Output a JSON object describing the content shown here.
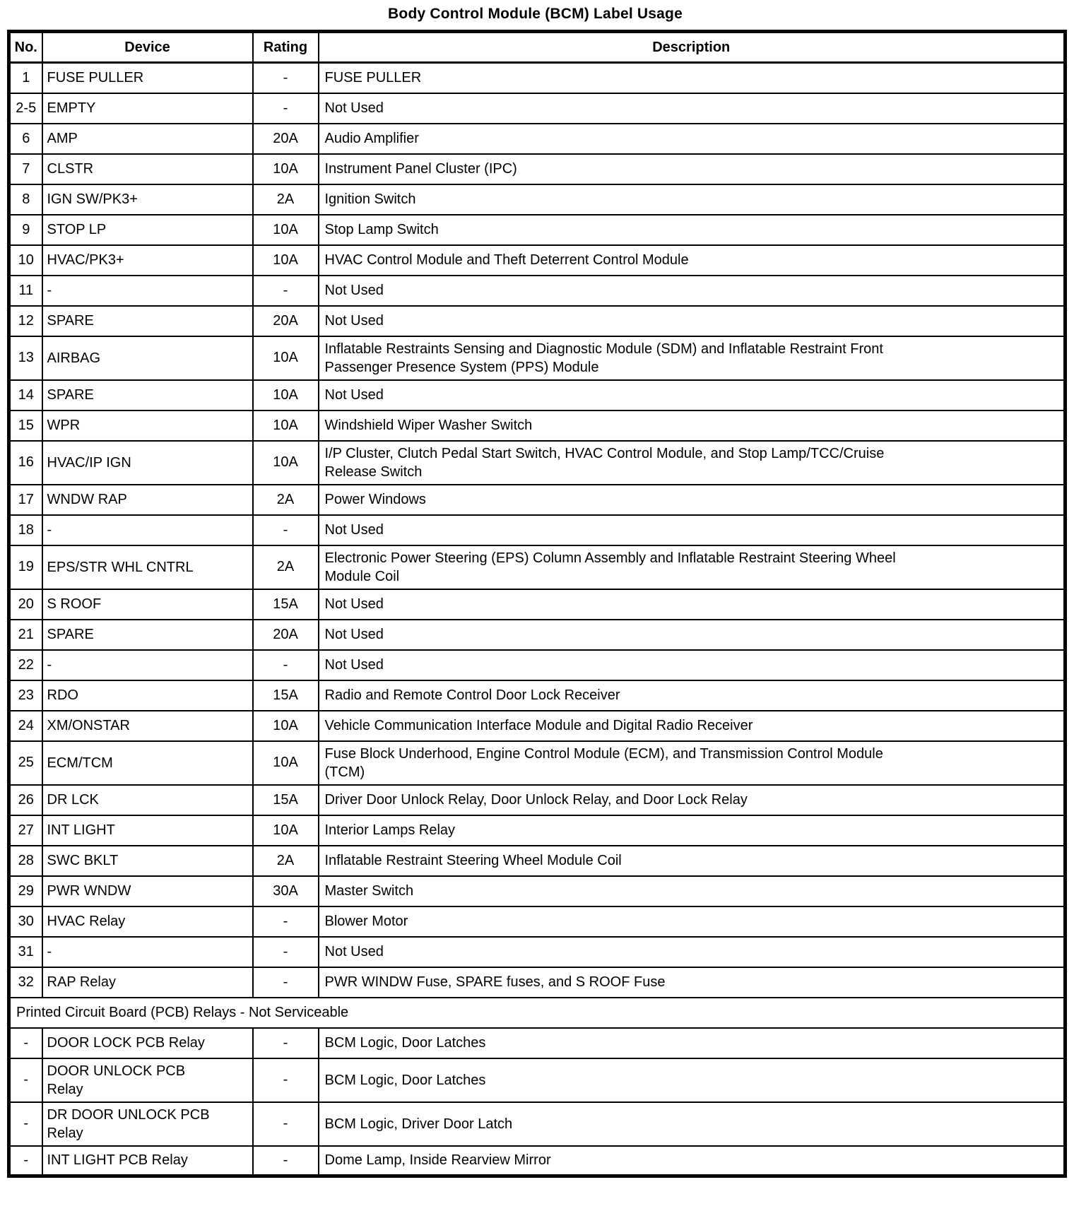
{
  "page": {
    "title": "Body Control Module (BCM) Label Usage"
  },
  "table": {
    "header": {
      "no": "No.",
      "device": "Device",
      "rating": "Rating",
      "description": "Description"
    },
    "rows": [
      {
        "no": "1",
        "device": "FUSE PULLER",
        "rating": "-",
        "description": "FUSE PULLER"
      },
      {
        "no": "2-5",
        "device": "EMPTY",
        "rating": "-",
        "description": "Not Used"
      },
      {
        "no": "6",
        "device": "AMP",
        "rating": "20A",
        "description": "Audio Amplifier"
      },
      {
        "no": "7",
        "device": "CLSTR",
        "rating": "10A",
        "description": "Instrument Panel Cluster (IPC)"
      },
      {
        "no": "8",
        "device": "IGN SW/PK3+",
        "rating": "2A",
        "description": "Ignition Switch"
      },
      {
        "no": "9",
        "device": "STOP LP",
        "rating": "10A",
        "description": "Stop Lamp Switch"
      },
      {
        "no": "10",
        "device": "HVAC/PK3+",
        "rating": "10A",
        "description": "HVAC Control Module and Theft Deterrent Control Module"
      },
      {
        "no": "11",
        "device": "-",
        "rating": "-",
        "description": "Not Used"
      },
      {
        "no": "12",
        "device": "SPARE",
        "rating": "20A",
        "description": "Not Used"
      },
      {
        "no": "13",
        "device": "AIRBAG",
        "rating": "10A",
        "description": "Inflatable Restraints Sensing and Diagnostic Module (SDM) and Inflatable Restraint Front\nPassenger Presence System (PPS) Module"
      },
      {
        "no": "14",
        "device": "SPARE",
        "rating": "10A",
        "description": "Not Used"
      },
      {
        "no": "15",
        "device": "WPR",
        "rating": "10A",
        "description": "Windshield Wiper Washer Switch"
      },
      {
        "no": "16",
        "device": "HVAC/IP IGN",
        "rating": "10A",
        "description": "I/P Cluster, Clutch Pedal Start Switch, HVAC Control Module, and Stop Lamp/TCC/Cruise\nRelease Switch"
      },
      {
        "no": "17",
        "device": "WNDW RAP",
        "rating": "2A",
        "description": "Power Windows"
      },
      {
        "no": "18",
        "device": "-",
        "rating": "-",
        "description": "Not Used"
      },
      {
        "no": "19",
        "device": "EPS/STR WHL CNTRL",
        "rating": "2A",
        "description": "Electronic Power Steering (EPS) Column Assembly and Inflatable Restraint Steering Wheel\nModule Coil"
      },
      {
        "no": "20",
        "device": "S ROOF",
        "rating": "15A",
        "description": "Not Used"
      },
      {
        "no": "21",
        "device": "SPARE",
        "rating": "20A",
        "description": "Not Used"
      },
      {
        "no": "22",
        "device": "-",
        "rating": "-",
        "description": "Not Used"
      },
      {
        "no": "23",
        "device": "RDO",
        "rating": "15A",
        "description": "Radio and Remote Control Door Lock Receiver"
      },
      {
        "no": "24",
        "device": "XM/ONSTAR",
        "rating": "10A",
        "description": "Vehicle Communication Interface Module and Digital Radio Receiver"
      },
      {
        "no": "25",
        "device": "ECM/TCM",
        "rating": "10A",
        "description": "Fuse Block Underhood, Engine Control Module (ECM), and Transmission Control Module\n(TCM)"
      },
      {
        "no": "26",
        "device": "DR LCK",
        "rating": "15A",
        "description": "Driver Door Unlock Relay, Door Unlock Relay, and Door Lock Relay"
      },
      {
        "no": "27",
        "device": "INT LIGHT",
        "rating": "10A",
        "description": "Interior Lamps Relay"
      },
      {
        "no": "28",
        "device": "SWC BKLT",
        "rating": "2A",
        "description": "Inflatable Restraint Steering Wheel Module Coil"
      },
      {
        "no": "29",
        "device": "PWR WNDW",
        "rating": "30A",
        "description": "Master Switch"
      },
      {
        "no": "30",
        "device": "HVAC Relay",
        "rating": "-",
        "description": "Blower Motor"
      },
      {
        "no": "31",
        "device": "-",
        "rating": "-",
        "description": "Not Used"
      },
      {
        "no": "32",
        "device": "RAP Relay",
        "rating": "-",
        "description": "PWR WINDW Fuse, SPARE fuses, and S ROOF Fuse"
      },
      {
        "type": "section",
        "label": "Printed Circuit Board (PCB) Relays - Not Serviceable"
      },
      {
        "no": "-",
        "device": "DOOR LOCK PCB Relay",
        "rating": "-",
        "description": "BCM Logic, Door Latches"
      },
      {
        "no": "-",
        "device": "DOOR UNLOCK PCB\nRelay",
        "rating": "-",
        "description": "BCM Logic, Door Latches"
      },
      {
        "no": "-",
        "device": "DR DOOR UNLOCK PCB\nRelay",
        "rating": "-",
        "description": "BCM Logic, Driver Door Latch"
      },
      {
        "no": "-",
        "device": "INT LIGHT PCB Relay",
        "rating": "-",
        "description": "Dome Lamp, Inside Rearview Mirror"
      }
    ]
  }
}
